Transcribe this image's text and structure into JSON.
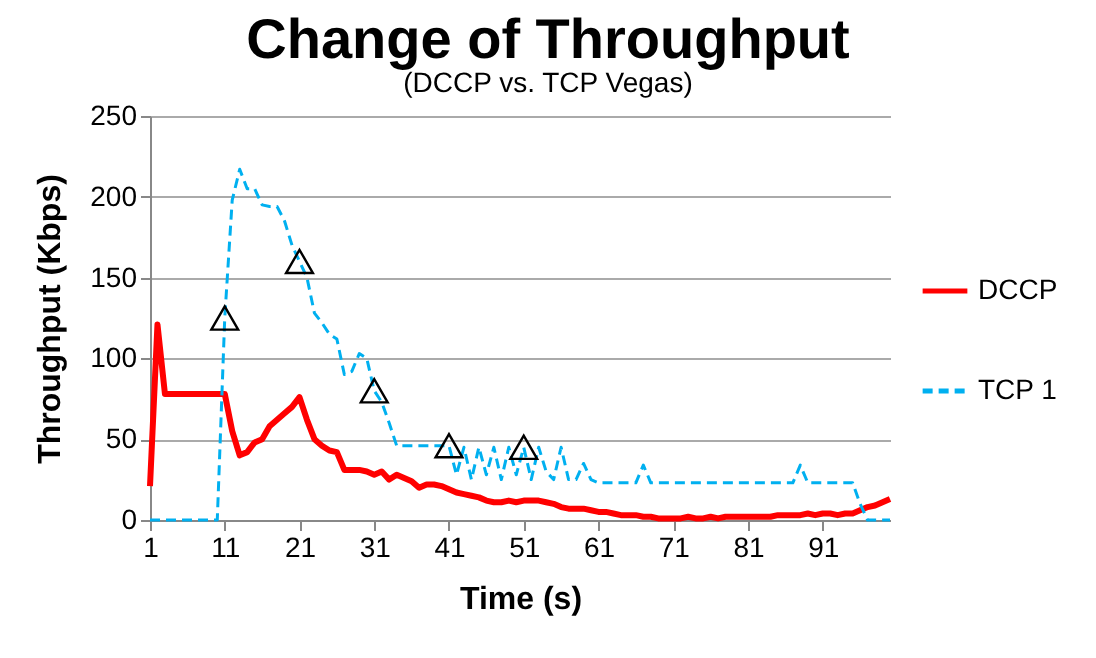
{
  "chart_data": {
    "type": "line",
    "title": "Change of Throughput",
    "subtitle": "(DCCP vs. TCP Vegas)",
    "xlabel": "Time (s)",
    "ylabel": "Throughput (Kbps)",
    "x": [
      1,
      2,
      3,
      4,
      5,
      6,
      7,
      8,
      9,
      10,
      11,
      12,
      13,
      14,
      15,
      16,
      17,
      18,
      19,
      20,
      21,
      22,
      23,
      24,
      25,
      26,
      27,
      28,
      29,
      30,
      31,
      32,
      33,
      34,
      35,
      36,
      37,
      38,
      39,
      40,
      41,
      42,
      43,
      44,
      45,
      46,
      47,
      48,
      49,
      50,
      51,
      52,
      53,
      54,
      55,
      56,
      57,
      58,
      59,
      60,
      61,
      62,
      63,
      64,
      65,
      66,
      67,
      68,
      69,
      70,
      71,
      72,
      73,
      74,
      75,
      76,
      77,
      78,
      79,
      80,
      81,
      82,
      83,
      84,
      85,
      86,
      87,
      88,
      89,
      90,
      91,
      92,
      93,
      94,
      95,
      96,
      97,
      98,
      99,
      100
    ],
    "xlim": [
      1,
      100
    ],
    "xticks": [
      1,
      11,
      21,
      31,
      41,
      51,
      61,
      71,
      81,
      91
    ],
    "ylim": [
      0,
      250
    ],
    "yticks": [
      0,
      50,
      100,
      150,
      200,
      250
    ],
    "grid": "y",
    "legend": "right",
    "series": [
      {
        "name": "DCCP",
        "color": "#ff0000",
        "line_style": "solid",
        "values": [
          21,
          121,
          78,
          78,
          78,
          78,
          78,
          78,
          78,
          78,
          78,
          55,
          40,
          42,
          48,
          50,
          58,
          62,
          66,
          70,
          76,
          62,
          50,
          46,
          43,
          42,
          31,
          31,
          31,
          30,
          28,
          30,
          25,
          28,
          26,
          24,
          20,
          22,
          22,
          21,
          19,
          17,
          16,
          15,
          14,
          12,
          11,
          11,
          12,
          11,
          12,
          12,
          12,
          11,
          10,
          8,
          7,
          7,
          7,
          6,
          5,
          5,
          4,
          3,
          3,
          3,
          2,
          2,
          1,
          1,
          1,
          1,
          2,
          1,
          1,
          2,
          1,
          2,
          2,
          2,
          2,
          2,
          2,
          2,
          3,
          3,
          3,
          3,
          4,
          3,
          4,
          4,
          3,
          4,
          4,
          6,
          8,
          9,
          11,
          13
        ]
      },
      {
        "name": "TCP 1",
        "color": "#00b0f0",
        "line_style": "dashed",
        "values": [
          0,
          0,
          0,
          0,
          0,
          0,
          0,
          0,
          0,
          0,
          125,
          198,
          217,
          205,
          205,
          195,
          194,
          194,
          185,
          170,
          160,
          150,
          128,
          122,
          115,
          112,
          90,
          92,
          103,
          100,
          80,
          73,
          60,
          46,
          46,
          46,
          46,
          46,
          46,
          46,
          46,
          28,
          45,
          25,
          45,
          28,
          45,
          25,
          45,
          28,
          45,
          25,
          45,
          30,
          25,
          45,
          25,
          25,
          35,
          25,
          23,
          23,
          23,
          23,
          23,
          23,
          34,
          23,
          23,
          23,
          23,
          23,
          23,
          23,
          23,
          23,
          23,
          23,
          23,
          23,
          23,
          23,
          23,
          23,
          23,
          23,
          23,
          34,
          23,
          23,
          23,
          23,
          23,
          23,
          23,
          10,
          0,
          0,
          0,
          0
        ]
      },
      {
        "type": "scatter",
        "marker": "triangle",
        "color": "#000000",
        "x": [
          11,
          21,
          31,
          41,
          51
        ],
        "values": [
          125,
          160,
          80,
          46,
          45
        ]
      }
    ]
  }
}
